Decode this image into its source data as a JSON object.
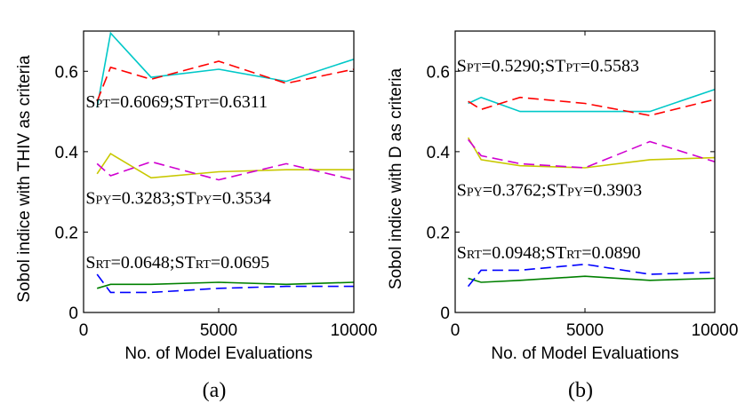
{
  "chart_data": [
    {
      "type": "line",
      "panel_label": "(a)",
      "xlabel": "No. of Model Evaluations",
      "ylabel": "Sobol indice with THIV as criteria",
      "xlim": [
        0,
        10000
      ],
      "ylim": [
        0,
        0.7
      ],
      "xticks": [
        0,
        5000,
        10000
      ],
      "yticks": [
        0,
        0.2,
        0.4,
        0.6
      ],
      "grid": false,
      "series": [
        {
          "color": "#00c8c8",
          "dash": "solid",
          "x": [
            500,
            1000,
            2500,
            5000,
            7500,
            10000
          ],
          "y": [
            0.51,
            0.695,
            0.585,
            0.605,
            0.575,
            0.63
          ]
        },
        {
          "color": "#ff0000",
          "dash": "dashed",
          "x": [
            500,
            1000,
            2500,
            5000,
            7500,
            10000
          ],
          "y": [
            0.525,
            0.61,
            0.58,
            0.625,
            0.57,
            0.605
          ]
        },
        {
          "color": "#c8c800",
          "dash": "solid",
          "x": [
            500,
            1000,
            2500,
            5000,
            7500,
            10000
          ],
          "y": [
            0.345,
            0.395,
            0.335,
            0.35,
            0.355,
            0.355
          ]
        },
        {
          "color": "#d000d0",
          "dash": "dashed",
          "x": [
            500,
            1000,
            2500,
            5000,
            7500,
            10000
          ],
          "y": [
            0.37,
            0.34,
            0.375,
            0.33,
            0.37,
            0.33
          ]
        },
        {
          "color": "#008000",
          "dash": "solid",
          "x": [
            500,
            1000,
            2500,
            5000,
            7500,
            10000
          ],
          "y": [
            0.06,
            0.07,
            0.07,
            0.075,
            0.07,
            0.075
          ]
        },
        {
          "color": "#0000ff",
          "dash": "dashed",
          "x": [
            500,
            1000,
            2500,
            5000,
            7500,
            10000
          ],
          "y": [
            0.095,
            0.05,
            0.05,
            0.06,
            0.065,
            0.065
          ]
        }
      ],
      "annotations": [
        {
          "parts": [
            {
              "t": "S",
              "sub": false
            },
            {
              "t": "PT",
              "sub": true
            },
            {
              "t": "=0.6069;ST",
              "sub": false
            },
            {
              "t": "PT",
              "sub": true
            },
            {
              "t": "=0.6311",
              "sub": false
            }
          ],
          "x": 80,
          "y": 0.51
        },
        {
          "parts": [
            {
              "t": "S",
              "sub": false
            },
            {
              "t": "PY",
              "sub": true
            },
            {
              "t": "=0.3283;ST",
              "sub": false
            },
            {
              "t": "PY",
              "sub": true
            },
            {
              "t": "=0.3534",
              "sub": false
            }
          ],
          "x": 80,
          "y": 0.27
        },
        {
          "parts": [
            {
              "t": "S",
              "sub": false
            },
            {
              "t": "RT",
              "sub": true
            },
            {
              "t": "=0.0648;ST",
              "sub": false
            },
            {
              "t": "RT",
              "sub": true
            },
            {
              "t": "=0.0695",
              "sub": false
            }
          ],
          "x": 80,
          "y": 0.11
        }
      ]
    },
    {
      "type": "line",
      "panel_label": "(b)",
      "xlabel": "No. of Model Evaluations",
      "ylabel": "Sobol indice with D as criteria",
      "xlim": [
        0,
        10000
      ],
      "ylim": [
        0,
        0.7
      ],
      "xticks": [
        0,
        5000,
        10000
      ],
      "yticks": [
        0,
        0.2,
        0.4,
        0.6
      ],
      "grid": false,
      "series": [
        {
          "color": "#00c8c8",
          "dash": "solid",
          "x": [
            500,
            1000,
            2500,
            5000,
            7500,
            10000
          ],
          "y": [
            0.52,
            0.535,
            0.5,
            0.5,
            0.5,
            0.555
          ]
        },
        {
          "color": "#ff0000",
          "dash": "dashed",
          "x": [
            500,
            1000,
            2500,
            5000,
            7500,
            10000
          ],
          "y": [
            0.525,
            0.505,
            0.535,
            0.52,
            0.49,
            0.53
          ]
        },
        {
          "color": "#c8c800",
          "dash": "solid",
          "x": [
            500,
            1000,
            2500,
            5000,
            7500,
            10000
          ],
          "y": [
            0.435,
            0.38,
            0.365,
            0.36,
            0.38,
            0.385
          ]
        },
        {
          "color": "#d000d0",
          "dash": "dashed",
          "x": [
            500,
            1000,
            2500,
            5000,
            7500,
            10000
          ],
          "y": [
            0.43,
            0.39,
            0.37,
            0.36,
            0.425,
            0.375
          ]
        },
        {
          "color": "#008000",
          "dash": "solid",
          "x": [
            500,
            1000,
            2500,
            5000,
            7500,
            10000
          ],
          "y": [
            0.085,
            0.075,
            0.08,
            0.09,
            0.08,
            0.085
          ]
        },
        {
          "color": "#0000ff",
          "dash": "dashed",
          "x": [
            500,
            1000,
            2500,
            5000,
            7500,
            10000
          ],
          "y": [
            0.065,
            0.105,
            0.105,
            0.12,
            0.095,
            0.1
          ]
        }
      ],
      "annotations": [
        {
          "parts": [
            {
              "t": "S",
              "sub": false
            },
            {
              "t": "PT",
              "sub": true
            },
            {
              "t": "=0.5290;ST",
              "sub": false
            },
            {
              "t": "PT",
              "sub": true
            },
            {
              "t": "=0.5583",
              "sub": false
            }
          ],
          "x": 60,
          "y": 0.6
        },
        {
          "parts": [
            {
              "t": "S",
              "sub": false
            },
            {
              "t": "PY",
              "sub": true
            },
            {
              "t": "=0.3762;ST",
              "sub": false
            },
            {
              "t": "PY",
              "sub": true
            },
            {
              "t": "=0.3903",
              "sub": false
            }
          ],
          "x": 60,
          "y": 0.29
        },
        {
          "parts": [
            {
              "t": "S",
              "sub": false
            },
            {
              "t": "RT",
              "sub": true
            },
            {
              "t": "=0.0948;ST",
              "sub": false
            },
            {
              "t": "RT",
              "sub": true
            },
            {
              "t": "=0.0890",
              "sub": false
            }
          ],
          "x": 60,
          "y": 0.135
        }
      ]
    }
  ]
}
